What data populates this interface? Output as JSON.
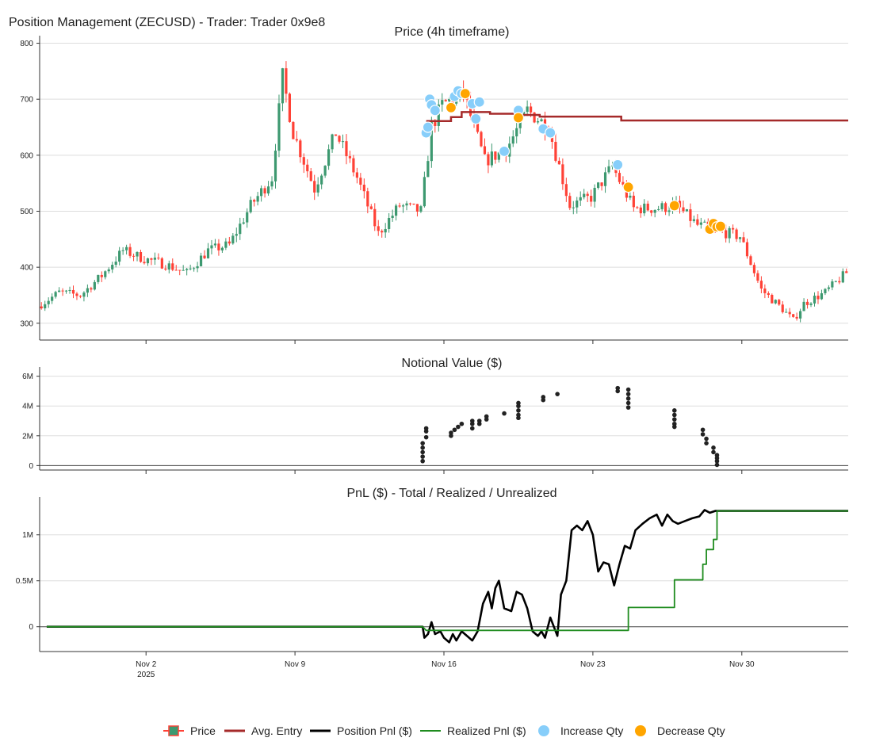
{
  "page_title": "Position Management (ZECUSD) - Trader: Trader 0x9e8",
  "colors": {
    "up": "#3d9970",
    "down": "#ff4136",
    "avg_entry": "#a52a2a",
    "position_pnl": "#000000",
    "realized_pnl": "#1f8c1f",
    "increase": "#87cefa",
    "decrease": "#ffa500",
    "grid": "#dddddd",
    "axis": "#333333"
  },
  "legend": [
    {
      "label": "Price",
      "icon": "candlestick-icon"
    },
    {
      "label": "Avg. Entry",
      "icon": "line-icon"
    },
    {
      "label": "Position Pnl ($)",
      "icon": "line-icon"
    },
    {
      "label": "Realized Pnl ($)",
      "icon": "line-icon"
    },
    {
      "label": "Increase Qty",
      "icon": "dot-icon"
    },
    {
      "label": "Decrease Qty",
      "icon": "dot-icon"
    }
  ],
  "chart_data": [
    {
      "type": "candlestick",
      "title": "Price (4h timeframe)",
      "ylim": [
        270,
        805
      ],
      "yticks": [
        300,
        400,
        500,
        600,
        700,
        800
      ],
      "x_range": [
        "2025-10-28",
        "2025-12-05"
      ],
      "grid": true,
      "price_path": [
        [
          "2025-10-28",
          330
        ],
        [
          "2025-10-29",
          355
        ],
        [
          "2025-10-30",
          350
        ],
        [
          "2025-10-31",
          385
        ],
        [
          "2025-11-01",
          430
        ],
        [
          "2025-11-02",
          415
        ],
        [
          "2025-11-03",
          405
        ],
        [
          "2025-11-04",
          390
        ],
        [
          "2025-11-05",
          430
        ],
        [
          "2025-11-06",
          440
        ],
        [
          "2025-11-07",
          510
        ],
        [
          "2025-11-08",
          560
        ],
        [
          "2025-11-08T12:00",
          740
        ],
        [
          "2025-11-09",
          640
        ],
        [
          "2025-11-10",
          540
        ],
        [
          "2025-11-11",
          640
        ],
        [
          "2025-11-12",
          560
        ],
        [
          "2025-11-13",
          460
        ],
        [
          "2025-11-14",
          510
        ],
        [
          "2025-11-15",
          500
        ],
        [
          "2025-11-15T12:00",
          650
        ],
        [
          "2025-11-16",
          690
        ],
        [
          "2025-11-17",
          710
        ],
        [
          "2025-11-18",
          590
        ],
        [
          "2025-11-19",
          610
        ],
        [
          "2025-11-20",
          680
        ],
        [
          "2025-11-21",
          650
        ],
        [
          "2025-11-22",
          510
        ],
        [
          "2025-11-23",
          525
        ],
        [
          "2025-11-24",
          580
        ],
        [
          "2025-11-25",
          505
        ],
        [
          "2025-11-26",
          505
        ],
        [
          "2025-11-27",
          510
        ],
        [
          "2025-11-28",
          475
        ],
        [
          "2025-11-29",
          465
        ],
        [
          "2025-11-30",
          455
        ],
        [
          "2025-12-01",
          360
        ],
        [
          "2025-12-02",
          325
        ],
        [
          "2025-12-02T12:00",
          305
        ],
        [
          "2025-12-03",
          335
        ],
        [
          "2025-12-04",
          355
        ],
        [
          "2025-12-05",
          390
        ]
      ],
      "avg_entry": [
        [
          "2025-11-15T04:00",
          661
        ],
        [
          "2025-11-16T08:00",
          668
        ],
        [
          "2025-11-16T20:00",
          677
        ],
        [
          "2025-11-18T04:00",
          674
        ],
        [
          "2025-11-19T12:00",
          672
        ],
        [
          "2025-11-20T12:00",
          669
        ],
        [
          "2025-11-24T08:00",
          662
        ],
        [
          "2025-12-05",
          662
        ]
      ],
      "increase_points": [
        [
          "2025-11-15T04:00",
          640
        ],
        [
          "2025-11-15T06:00",
          650
        ],
        [
          "2025-11-15T08:00",
          700
        ],
        [
          "2025-11-15T10:00",
          690
        ],
        [
          "2025-11-15T14:00",
          680
        ],
        [
          "2025-11-16T12:00",
          705
        ],
        [
          "2025-11-16T16:00",
          715
        ],
        [
          "2025-11-16T20:00",
          710
        ],
        [
          "2025-11-17T08:00",
          692
        ],
        [
          "2025-11-17T12:00",
          665
        ],
        [
          "2025-11-17T16:00",
          695
        ],
        [
          "2025-11-18T20:00",
          607
        ],
        [
          "2025-11-19T12:00",
          680
        ],
        [
          "2025-11-20T16:00",
          647
        ],
        [
          "2025-11-21T00:00",
          640
        ],
        [
          "2025-11-24T04:00",
          583
        ]
      ],
      "decrease_points": [
        [
          "2025-11-16T08:00",
          685
        ],
        [
          "2025-11-17T00:00",
          710
        ],
        [
          "2025-11-19T12:00",
          667
        ],
        [
          "2025-11-24T16:00",
          543
        ],
        [
          "2025-11-26T20:00",
          510
        ],
        [
          "2025-11-28T12:00",
          468
        ],
        [
          "2025-11-28T16:00",
          478
        ],
        [
          "2025-11-28T20:00",
          472
        ],
        [
          "2025-11-29T00:00",
          473
        ]
      ]
    },
    {
      "type": "scatter",
      "title": "Notional Value ($)",
      "ylim": [
        -0.3,
        6.3
      ],
      "yticks": [
        0,
        2,
        4,
        6
      ],
      "ytick_labels": [
        "0",
        "2M",
        "4M",
        "6M"
      ],
      "unit": "M",
      "x_range": [
        "2025-10-28",
        "2025-12-05"
      ],
      "points": [
        [
          "2025-11-15T00:00",
          0.3
        ],
        [
          "2025-11-15T00:00",
          0.6
        ],
        [
          "2025-11-15T00:00",
          0.9
        ],
        [
          "2025-11-15T00:00",
          1.2
        ],
        [
          "2025-11-15T00:00",
          1.5
        ],
        [
          "2025-11-15T04:00",
          1.9
        ],
        [
          "2025-11-15T04:00",
          2.3
        ],
        [
          "2025-11-15T04:00",
          2.5
        ],
        [
          "2025-11-16T08:00",
          2.0
        ],
        [
          "2025-11-16T08:00",
          2.2
        ],
        [
          "2025-11-16T12:00",
          2.4
        ],
        [
          "2025-11-16T16:00",
          2.6
        ],
        [
          "2025-11-16T20:00",
          2.8
        ],
        [
          "2025-11-17T08:00",
          2.5
        ],
        [
          "2025-11-17T08:00",
          2.8
        ],
        [
          "2025-11-17T08:00",
          3.0
        ],
        [
          "2025-11-17T16:00",
          2.8
        ],
        [
          "2025-11-17T16:00",
          3.0
        ],
        [
          "2025-11-18T00:00",
          3.1
        ],
        [
          "2025-11-18T00:00",
          3.3
        ],
        [
          "2025-11-18T20:00",
          3.5
        ],
        [
          "2025-11-19T12:00",
          3.2
        ],
        [
          "2025-11-19T12:00",
          3.4
        ],
        [
          "2025-11-19T12:00",
          3.7
        ],
        [
          "2025-11-19T12:00",
          4.0
        ],
        [
          "2025-11-19T12:00",
          4.2
        ],
        [
          "2025-11-20T16:00",
          4.4
        ],
        [
          "2025-11-20T16:00",
          4.6
        ],
        [
          "2025-11-21T08:00",
          4.8
        ],
        [
          "2025-11-24T04:00",
          5.0
        ],
        [
          "2025-11-24T04:00",
          5.2
        ],
        [
          "2025-11-24T16:00",
          5.1
        ],
        [
          "2025-11-24T16:00",
          4.8
        ],
        [
          "2025-11-24T16:00",
          4.5
        ],
        [
          "2025-11-24T16:00",
          4.2
        ],
        [
          "2025-11-24T16:00",
          3.9
        ],
        [
          "2025-11-26T20:00",
          3.7
        ],
        [
          "2025-11-26T20:00",
          3.4
        ],
        [
          "2025-11-26T20:00",
          3.1
        ],
        [
          "2025-11-26T20:00",
          2.8
        ],
        [
          "2025-11-26T20:00",
          2.6
        ],
        [
          "2025-11-28T04:00",
          2.4
        ],
        [
          "2025-11-28T04:00",
          2.1
        ],
        [
          "2025-11-28T08:00",
          1.8
        ],
        [
          "2025-11-28T08:00",
          1.5
        ],
        [
          "2025-11-28T16:00",
          1.2
        ],
        [
          "2025-11-28T16:00",
          0.9
        ],
        [
          "2025-11-28T20:00",
          0.7
        ],
        [
          "2025-11-28T20:00",
          0.5
        ],
        [
          "2025-11-28T20:00",
          0.3
        ],
        [
          "2025-11-28T20:00",
          0.05
        ]
      ]
    },
    {
      "type": "line",
      "title": "PnL ($) - Total / Realized / Unrealized",
      "ylim": [
        -0.27,
        1.36
      ],
      "yticks": [
        0,
        0.5,
        1
      ],
      "ytick_labels": [
        "0",
        "0.5M",
        "1M"
      ],
      "unit": "M",
      "x_range": [
        "2025-10-28",
        "2025-12-05"
      ],
      "xticks": [
        [
          "2025-11-02",
          "Nov 2",
          "2025"
        ],
        [
          "2025-11-09",
          "Nov 9",
          ""
        ],
        [
          "2025-11-16",
          "Nov 16",
          ""
        ],
        [
          "2025-11-23",
          "Nov 23",
          ""
        ],
        [
          "2025-11-30",
          "Nov 30",
          ""
        ]
      ],
      "series": [
        {
          "name": "Position Pnl ($)",
          "points": [
            [
              "2025-10-28T08:00",
              0
            ],
            [
              "2025-11-15T00:00",
              0
            ],
            [
              "2025-11-15T02:00",
              -0.12
            ],
            [
              "2025-11-15T06:00",
              -0.08
            ],
            [
              "2025-11-15T10:00",
              0.05
            ],
            [
              "2025-11-15T14:00",
              -0.08
            ],
            [
              "2025-11-15T20:00",
              -0.05
            ],
            [
              "2025-11-16T00:00",
              -0.12
            ],
            [
              "2025-11-16T06:00",
              -0.17
            ],
            [
              "2025-11-16T10:00",
              -0.08
            ],
            [
              "2025-11-16T14:00",
              -0.15
            ],
            [
              "2025-11-16T20:00",
              -0.05
            ],
            [
              "2025-11-17T02:00",
              -0.1
            ],
            [
              "2025-11-17T08:00",
              -0.15
            ],
            [
              "2025-11-17T14:00",
              -0.05
            ],
            [
              "2025-11-17T20:00",
              0.25
            ],
            [
              "2025-11-18T02:00",
              0.38
            ],
            [
              "2025-11-18T06:00",
              0.2
            ],
            [
              "2025-11-18T10:00",
              0.42
            ],
            [
              "2025-11-18T14:00",
              0.5
            ],
            [
              "2025-11-18T20:00",
              0.2
            ],
            [
              "2025-11-19T04:00",
              0.17
            ],
            [
              "2025-11-19T10:00",
              0.38
            ],
            [
              "2025-11-19T16:00",
              0.35
            ],
            [
              "2025-11-19T22:00",
              0.2
            ],
            [
              "2025-11-20T04:00",
              -0.05
            ],
            [
              "2025-11-20T10:00",
              -0.1
            ],
            [
              "2025-11-20T14:00",
              -0.05
            ],
            [
              "2025-11-20T18:00",
              -0.12
            ],
            [
              "2025-11-21T00:00",
              0.1
            ],
            [
              "2025-11-21T04:00",
              0.0
            ],
            [
              "2025-11-21T08:00",
              -0.1
            ],
            [
              "2025-11-21T12:00",
              0.35
            ],
            [
              "2025-11-21T18:00",
              0.5
            ],
            [
              "2025-11-22T00:00",
              1.05
            ],
            [
              "2025-11-22T06:00",
              1.1
            ],
            [
              "2025-11-22T12:00",
              1.05
            ],
            [
              "2025-11-22T18:00",
              1.15
            ],
            [
              "2025-11-23T00:00",
              1.0
            ],
            [
              "2025-11-23T06:00",
              0.6
            ],
            [
              "2025-11-23T12:00",
              0.7
            ],
            [
              "2025-11-23T18:00",
              0.68
            ],
            [
              "2025-11-24T00:00",
              0.45
            ],
            [
              "2025-11-24T06:00",
              0.68
            ],
            [
              "2025-11-24T12:00",
              0.88
            ],
            [
              "2025-11-24T18:00",
              0.85
            ],
            [
              "2025-11-25T00:00",
              1.05
            ],
            [
              "2025-11-25T08:00",
              1.12
            ],
            [
              "2025-11-25T16:00",
              1.18
            ],
            [
              "2025-11-26T00:00",
              1.22
            ],
            [
              "2025-11-26T06:00",
              1.1
            ],
            [
              "2025-11-26T12:00",
              1.22
            ],
            [
              "2025-11-26T18:00",
              1.15
            ],
            [
              "2025-11-27T00:00",
              1.12
            ],
            [
              "2025-11-27T08:00",
              1.15
            ],
            [
              "2025-11-27T16:00",
              1.18
            ],
            [
              "2025-11-28T00:00",
              1.2
            ],
            [
              "2025-11-28T06:00",
              1.27
            ],
            [
              "2025-11-28T12:00",
              1.24
            ],
            [
              "2025-11-28T18:00",
              1.26
            ],
            [
              "2025-11-29T00:00",
              1.26
            ],
            [
              "2025-12-05T00:00",
              1.26
            ]
          ]
        },
        {
          "name": "Realized Pnl ($)",
          "points": [
            [
              "2025-10-28T08:00",
              0
            ],
            [
              "2025-11-15T00:00",
              0
            ],
            [
              "2025-11-15T04:00",
              -0.04
            ],
            [
              "2025-11-24T16:00",
              -0.04
            ],
            [
              "2025-11-24T16:00",
              0.21
            ],
            [
              "2025-11-26T20:00",
              0.21
            ],
            [
              "2025-11-26T20:00",
              0.51
            ],
            [
              "2025-11-28T04:00",
              0.51
            ],
            [
              "2025-11-28T04:00",
              0.68
            ],
            [
              "2025-11-28T08:00",
              0.68
            ],
            [
              "2025-11-28T08:00",
              0.84
            ],
            [
              "2025-11-28T16:00",
              0.84
            ],
            [
              "2025-11-28T16:00",
              0.95
            ],
            [
              "2025-11-28T20:00",
              0.95
            ],
            [
              "2025-11-28T20:00",
              1.26
            ],
            [
              "2025-12-05T00:00",
              1.26
            ]
          ]
        }
      ]
    }
  ]
}
